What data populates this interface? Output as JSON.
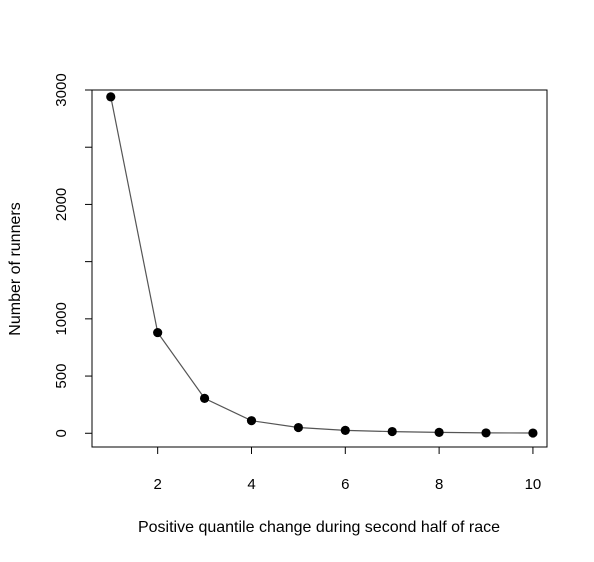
{
  "chart_data": {
    "type": "line",
    "title": "",
    "xlabel": "Positive quantile change during second half of race",
    "ylabel": "Number of runners",
    "x": [
      1,
      2,
      3,
      4,
      5,
      6,
      7,
      8,
      9,
      10
    ],
    "y": [
      2940,
      880,
      305,
      110,
      50,
      25,
      15,
      8,
      3,
      2
    ],
    "xlim": [
      0.6,
      10.3
    ],
    "ylim": [
      -120,
      3000
    ],
    "x_ticks": [
      2,
      4,
      6,
      8,
      10
    ],
    "x_tick_labels": [
      "2",
      "4",
      "6",
      "8",
      "10"
    ],
    "y_ticks": [
      0,
      500,
      1000,
      1500,
      2000,
      2500,
      3000
    ],
    "y_tick_labels": [
      "0",
      "500",
      "1000",
      "",
      "2000",
      "",
      "3000"
    ],
    "grid": false,
    "marker": "filled-circle",
    "line_color": "#555555",
    "marker_color": "#000000"
  }
}
